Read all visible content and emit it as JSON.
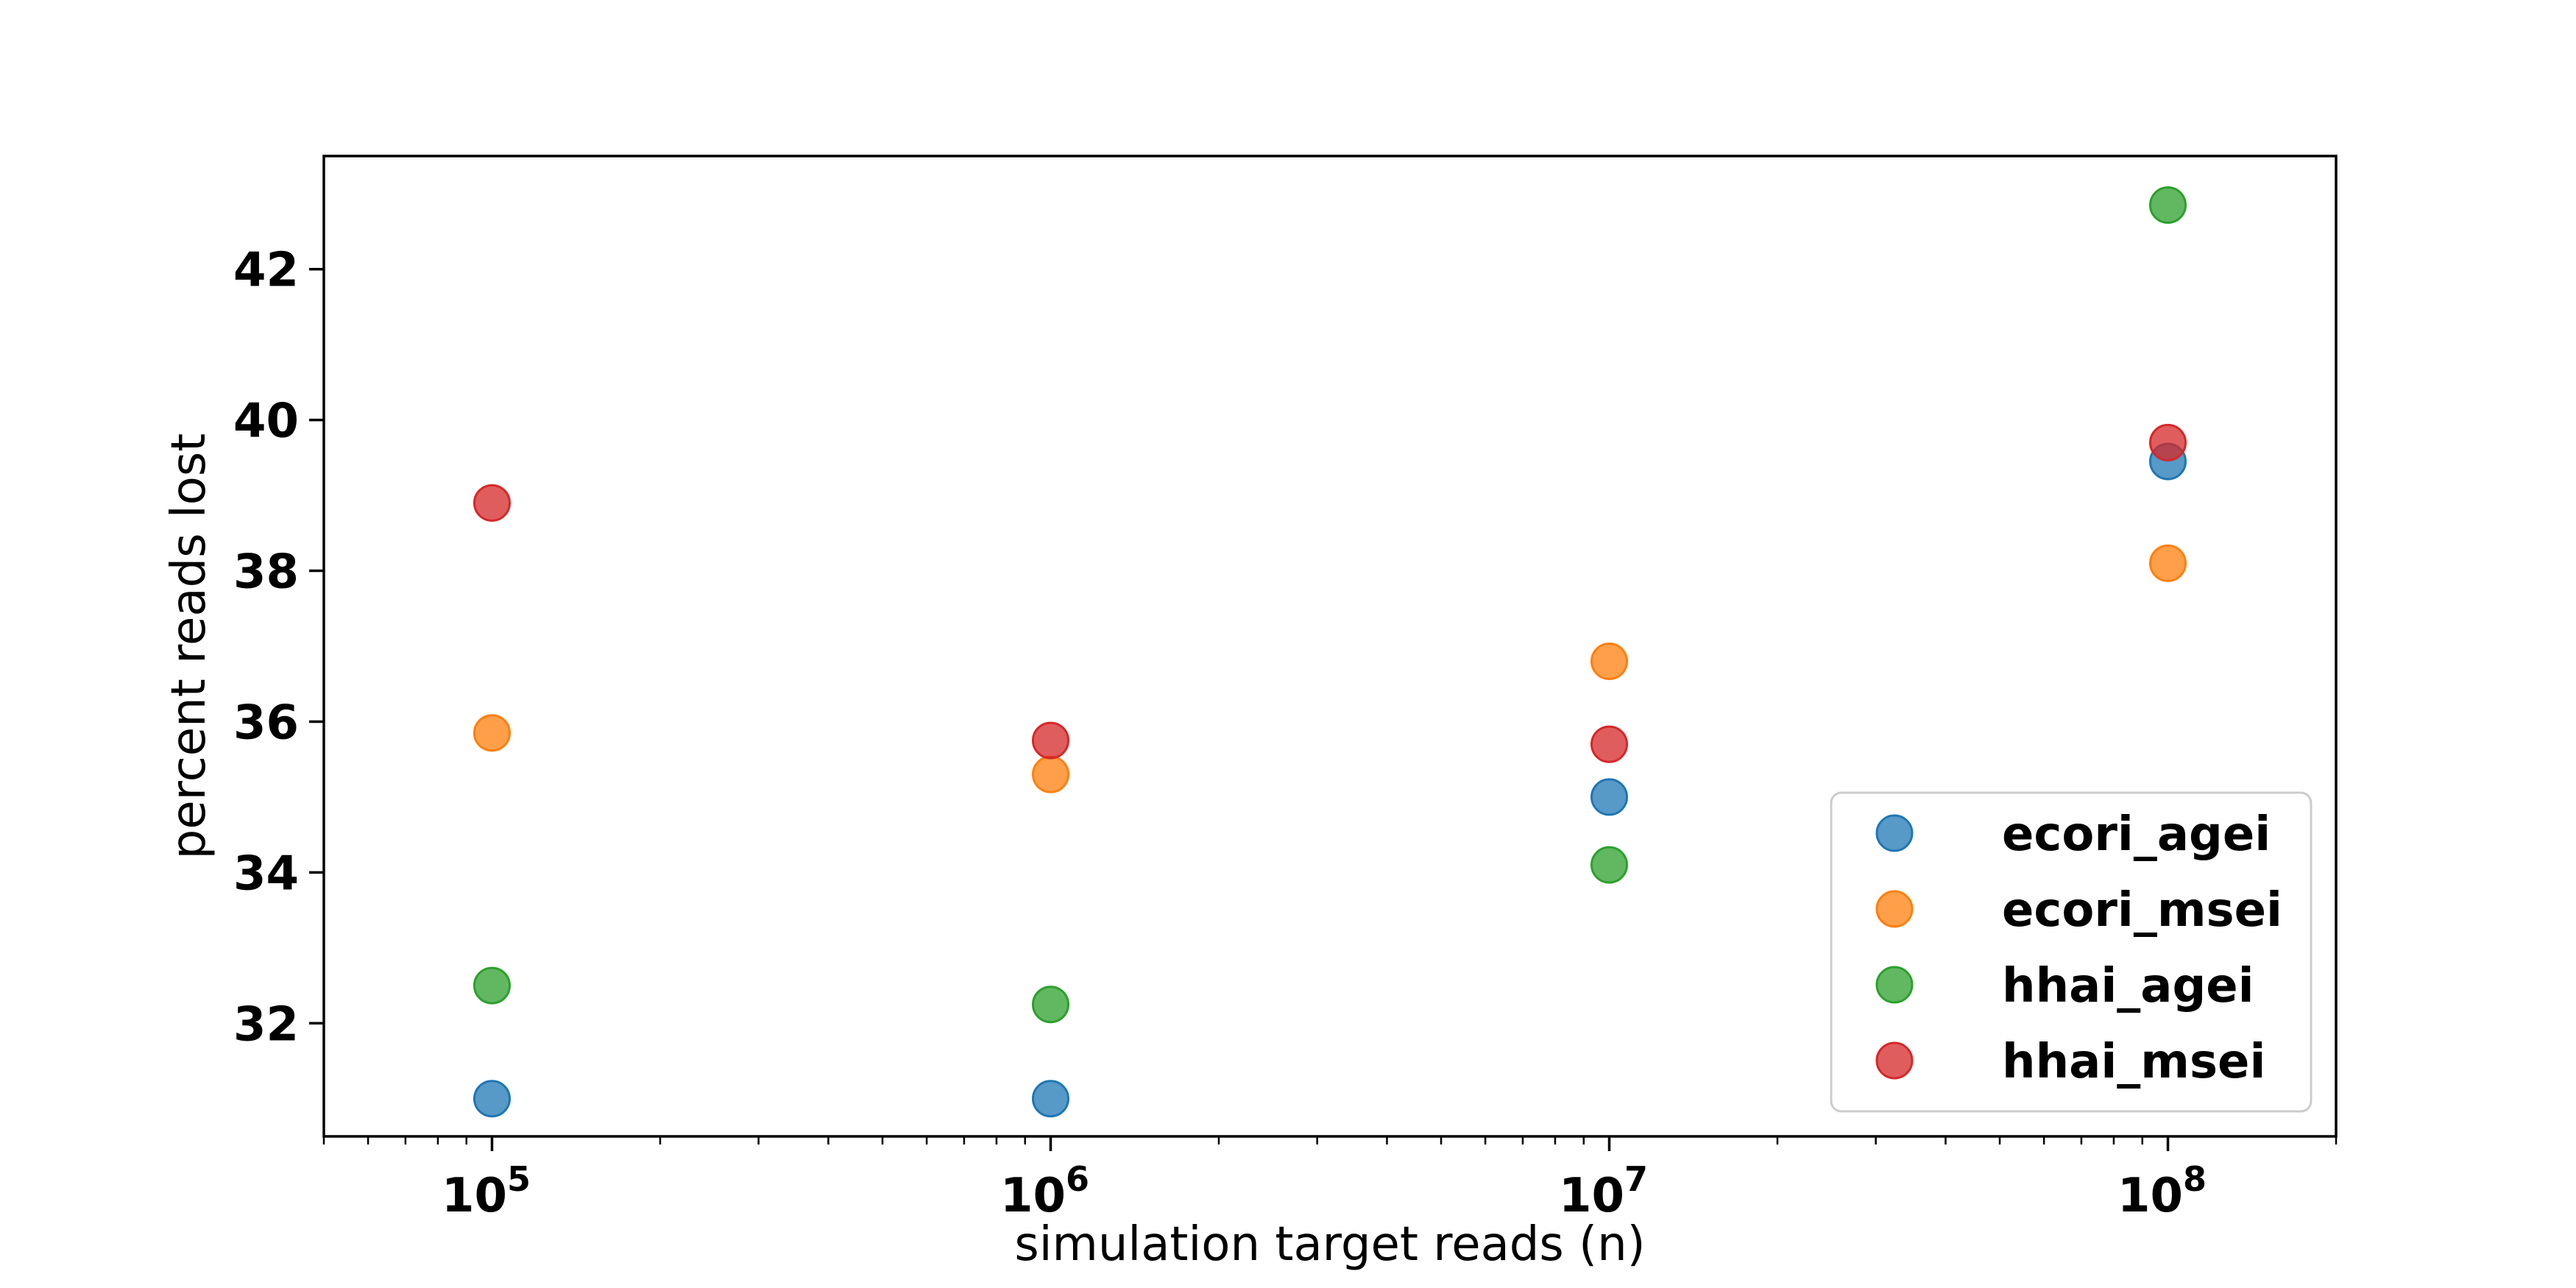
{
  "chart_data": {
    "type": "scatter",
    "xscale": "log",
    "xlabel": "simulation target reads (n)",
    "ylabel": "percent reads lost",
    "x": [
      100000,
      1000000,
      10000000,
      100000000
    ],
    "xticks": [
      {
        "value": 100000,
        "base": "10",
        "exp": "5"
      },
      {
        "value": 1000000,
        "base": "10",
        "exp": "6"
      },
      {
        "value": 10000000,
        "base": "10",
        "exp": "7"
      },
      {
        "value": 100000000,
        "base": "10",
        "exp": "8"
      }
    ],
    "yticks": [
      "32",
      "34",
      "36",
      "38",
      "40",
      "42"
    ],
    "xlim": [
      50000,
      200000000
    ],
    "ylim": [
      30.5,
      43.5
    ],
    "grid": false,
    "legend_position": "lower-right",
    "series": [
      {
        "name": "ecori_agei",
        "color": "#1f77b4",
        "values": [
          31.0,
          31.0,
          35.0,
          39.45
        ]
      },
      {
        "name": "ecori_msei",
        "color": "#ff7f0e",
        "values": [
          35.85,
          35.3,
          36.8,
          38.1
        ]
      },
      {
        "name": "hhai_agei",
        "color": "#2ca02c",
        "values": [
          32.5,
          32.25,
          34.1,
          42.85
        ]
      },
      {
        "name": "hhai_msei",
        "color": "#d62728",
        "values": [
          38.9,
          35.75,
          35.7,
          39.7
        ]
      }
    ]
  }
}
